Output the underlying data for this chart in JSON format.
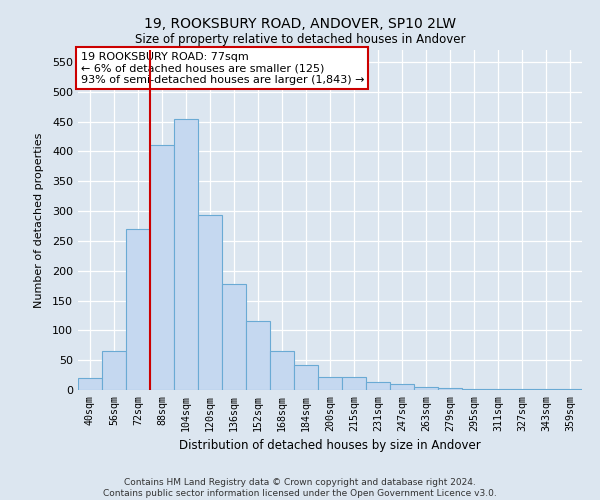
{
  "title1": "19, ROOKSBURY ROAD, ANDOVER, SP10 2LW",
  "title2": "Size of property relative to detached houses in Andover",
  "xlabel": "Distribution of detached houses by size in Andover",
  "ylabel": "Number of detached properties",
  "footer": "Contains HM Land Registry data © Crown copyright and database right 2024.\nContains public sector information licensed under the Open Government Licence v3.0.",
  "categories": [
    "40sqm",
    "56sqm",
    "72sqm",
    "88sqm",
    "104sqm",
    "120sqm",
    "136sqm",
    "152sqm",
    "168sqm",
    "184sqm",
    "200sqm",
    "215sqm",
    "231sqm",
    "247sqm",
    "263sqm",
    "279sqm",
    "295sqm",
    "311sqm",
    "327sqm",
    "343sqm",
    "359sqm"
  ],
  "values": [
    20,
    65,
    270,
    410,
    455,
    293,
    178,
    115,
    66,
    42,
    22,
    22,
    13,
    10,
    5,
    4,
    2,
    1,
    1,
    1,
    1
  ],
  "bar_color": "#c5d8f0",
  "bar_edge_color": "#6aaad4",
  "vline_x_index": 2,
  "vline_color": "#cc0000",
  "annotation_text": "19 ROOKSBURY ROAD: 77sqm\n← 6% of detached houses are smaller (125)\n93% of semi-detached houses are larger (1,843) →",
  "annotation_box_color": "#ffffff",
  "annotation_box_edge": "#cc0000",
  "ylim": [
    0,
    570
  ],
  "yticks": [
    0,
    50,
    100,
    150,
    200,
    250,
    300,
    350,
    400,
    450,
    500,
    550
  ],
  "background_color": "#dce6f0",
  "plot_bg_color": "#dce6f0",
  "grid_color": "#ffffff"
}
